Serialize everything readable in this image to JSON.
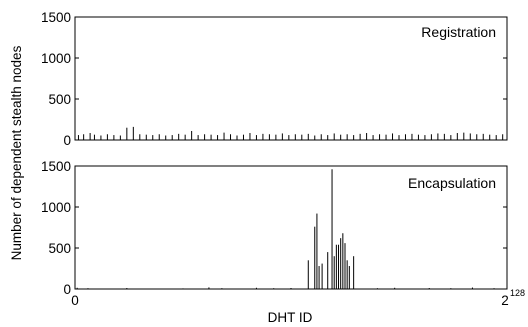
{
  "chart_data": [
    {
      "type": "bar",
      "panel_label": "Registration",
      "ylim": [
        0,
        1500
      ],
      "yticks": [
        0,
        500,
        1000,
        1500
      ],
      "xlim": [
        0,
        1
      ],
      "x_unit": "fraction of 2^128",
      "x": [
        0.008,
        0.02,
        0.035,
        0.045,
        0.06,
        0.075,
        0.09,
        0.105,
        0.12,
        0.135,
        0.15,
        0.165,
        0.18,
        0.195,
        0.21,
        0.225,
        0.24,
        0.255,
        0.27,
        0.285,
        0.3,
        0.315,
        0.33,
        0.345,
        0.36,
        0.375,
        0.39,
        0.405,
        0.42,
        0.435,
        0.45,
        0.465,
        0.48,
        0.495,
        0.51,
        0.525,
        0.54,
        0.555,
        0.57,
        0.585,
        0.6,
        0.615,
        0.63,
        0.645,
        0.66,
        0.675,
        0.69,
        0.705,
        0.72,
        0.735,
        0.75,
        0.765,
        0.78,
        0.795,
        0.81,
        0.825,
        0.84,
        0.855,
        0.87,
        0.885,
        0.9,
        0.915,
        0.93,
        0.945,
        0.96,
        0.975,
        0.99
      ],
      "values": [
        60,
        70,
        85,
        65,
        55,
        70,
        60,
        55,
        150,
        160,
        70,
        65,
        60,
        70,
        55,
        60,
        75,
        65,
        110,
        60,
        70,
        65,
        60,
        90,
        70,
        55,
        65,
        85,
        60,
        75,
        70,
        65,
        80,
        60,
        70,
        65,
        75,
        55,
        70,
        60,
        80,
        65,
        70,
        60,
        75,
        85,
        60,
        70,
        65,
        80,
        60,
        70,
        75,
        65,
        60,
        70,
        80,
        75,
        60,
        85,
        90,
        80,
        70,
        75,
        65,
        60,
        70
      ]
    },
    {
      "type": "bar",
      "panel_label": "Encapsulation",
      "xlabel": "DHT ID",
      "ylim": [
        0,
        1500
      ],
      "yticks": [
        0,
        500,
        1000,
        1500
      ],
      "xlim": [
        0,
        1
      ],
      "x_unit": "fraction of 2^128",
      "xtick_labels": [
        "0",
        "2"
      ],
      "xtick_exponent": "128",
      "x": [
        0.005,
        0.03,
        0.12,
        0.25,
        0.31,
        0.34,
        0.42,
        0.46,
        0.5,
        0.54,
        0.555,
        0.56,
        0.565,
        0.572,
        0.585,
        0.595,
        0.6,
        0.605,
        0.61,
        0.615,
        0.62,
        0.625,
        0.63,
        0.635,
        0.645,
        0.7,
        0.74,
        0.82,
        0.87,
        0.92,
        0.97
      ],
      "values": [
        15,
        10,
        12,
        8,
        20,
        10,
        15,
        10,
        12,
        350,
        760,
        920,
        280,
        310,
        450,
        1460,
        400,
        540,
        540,
        620,
        680,
        560,
        350,
        280,
        400,
        10,
        15,
        12,
        10,
        18,
        10
      ]
    }
  ],
  "ylabel": "Number of dependent stealth nodes"
}
